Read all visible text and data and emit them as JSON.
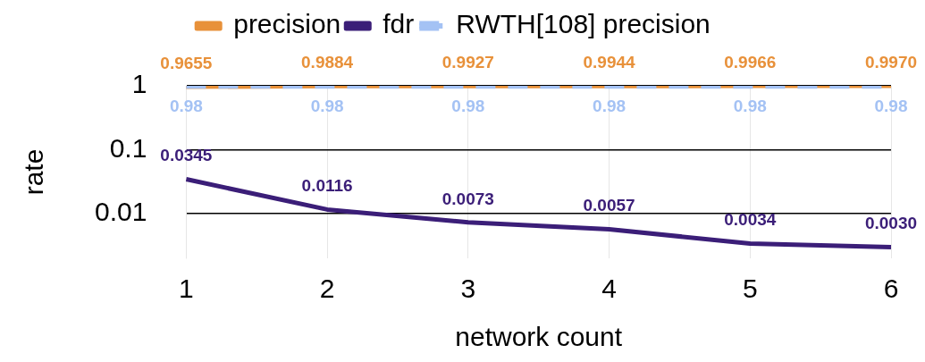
{
  "chart_data": {
    "type": "line",
    "xlabel": "network count",
    "ylabel": "rate",
    "categories": [
      "1",
      "2",
      "3",
      "4",
      "5",
      "6"
    ],
    "series": [
      {
        "name": "precision",
        "color": "#e8913a",
        "line_style": "solid",
        "values": [
          0.9655,
          0.9884,
          0.9927,
          0.9944,
          0.9966,
          0.997
        ],
        "value_labels": [
          "0.9655",
          "0.9884",
          "0.9927",
          "0.9944",
          "0.9966",
          "0.9970"
        ]
      },
      {
        "name": "fdr",
        "color": "#3b1e78",
        "line_style": "solid",
        "values": [
          0.0345,
          0.0116,
          0.0073,
          0.0057,
          0.0034,
          0.003
        ],
        "value_labels": [
          "0.0345",
          "0.0116",
          "0.0073",
          "0.0057",
          "0.0034",
          "0.0030"
        ]
      },
      {
        "name": "RWTH[108] precision",
        "color": "#a4c2f4",
        "line_style": "dashed",
        "values": [
          0.98,
          0.98,
          0.98,
          0.98,
          0.98,
          0.98
        ],
        "value_labels": [
          "0.98",
          "0.98",
          "0.98",
          "0.98",
          "0.98",
          "0.98"
        ]
      }
    ],
    "log": "y",
    "ylim": [
      0.002,
      1
    ],
    "yticks": [
      0.01,
      0.1,
      1
    ],
    "grid": true,
    "legend": "top",
    "marker": "none"
  }
}
